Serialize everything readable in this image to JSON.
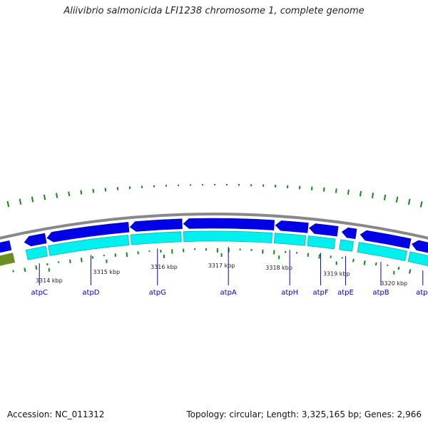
{
  "title": "Aliivibrio salmonicida LFI1238 chromosome 1, complete genome",
  "accession": "Accession: NC_011312",
  "topology": "Topology: circular; Length: 3,325,165 bp; Genes: 2,966",
  "colors": {
    "backbone": "#888888",
    "gene_forward": "#0000e6",
    "gene_cds": "#00f0f0",
    "gene_cds_dark": "#00b8b8",
    "gene_other": "#6b8e23",
    "tick": "#138a13",
    "gene_label": "#0000cc"
  },
  "axis": {
    "unit": "kbp",
    "ticks": [
      {
        "label": "3314 kbp",
        "kbp": 3314
      },
      {
        "label": "3315 kbp",
        "kbp": 3315
      },
      {
        "label": "3316 kbp",
        "kbp": 3316
      },
      {
        "label": "3317 kbp",
        "kbp": 3317
      },
      {
        "label": "3318 kbp",
        "kbp": 3318
      },
      {
        "label": "3319 kbp",
        "kbp": 3319
      },
      {
        "label": "3320 kbp",
        "kbp": 3320
      }
    ]
  },
  "genes": [
    {
      "name": "atpC",
      "start_kbp": 3313.72,
      "end_kbp": 3314.08
    },
    {
      "name": "atpD",
      "start_kbp": 3314.1,
      "end_kbp": 3315.48
    },
    {
      "name": "atpG",
      "start_kbp": 3315.5,
      "end_kbp": 3316.38
    },
    {
      "name": "atpA",
      "start_kbp": 3316.4,
      "end_kbp": 3317.93
    },
    {
      "name": "atpH",
      "start_kbp": 3317.95,
      "end_kbp": 3318.5
    },
    {
      "name": "atpF",
      "start_kbp": 3318.52,
      "end_kbp": 3319.0
    },
    {
      "name": "atpE",
      "start_kbp": 3319.07,
      "end_kbp": 3319.31
    },
    {
      "name": "atpB",
      "start_kbp": 3319.38,
      "end_kbp": 3320.22
    },
    {
      "name": "atpI",
      "start_kbp": 3320.25,
      "end_kbp": 3320.8
    }
  ]
}
